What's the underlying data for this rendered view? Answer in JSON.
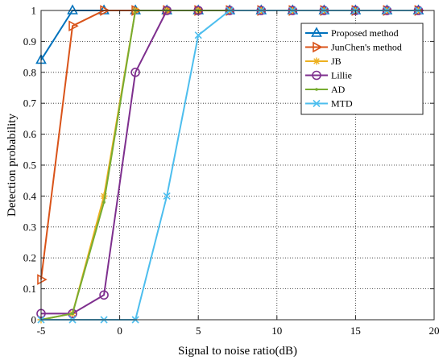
{
  "chart_data": {
    "type": "line",
    "title": "",
    "xlabel": "Signal to noise ratio(dB)",
    "ylabel": "Detection probability",
    "xlim": [
      -5,
      20
    ],
    "ylim": [
      0,
      1
    ],
    "xticks": [
      -5,
      0,
      5,
      10,
      15,
      20
    ],
    "xtick_labels": [
      "-5",
      "0",
      "5",
      "10",
      "15",
      "20"
    ],
    "yticks": [
      0,
      0.1,
      0.2,
      0.3,
      0.4,
      0.5,
      0.6,
      0.7,
      0.8,
      0.9,
      1
    ],
    "ytick_labels": [
      "0",
      "0.1",
      "0.2",
      "0.3",
      "0.4",
      "0.5",
      "0.6",
      "0.7",
      "0.8",
      "0.9",
      "1"
    ],
    "grid": true,
    "grid_style": "dotted",
    "legend_position": "top-right",
    "series": [
      {
        "name": "Proposed method",
        "color": "#0072BD",
        "marker": "triangle-up",
        "x": [
          -5,
          -3,
          -1,
          1,
          3,
          5,
          7,
          9,
          11,
          13,
          15,
          17,
          19
        ],
        "y": [
          0.84,
          1,
          1,
          1,
          1,
          1,
          1,
          1,
          1,
          1,
          1,
          1,
          1
        ]
      },
      {
        "name": "JunChen's method",
        "color": "#D95319",
        "marker": "triangle-right",
        "x": [
          -5,
          -3,
          -1,
          1,
          3,
          5,
          7,
          9,
          11,
          13,
          15,
          17,
          19
        ],
        "y": [
          0.13,
          0.95,
          1,
          1,
          1,
          1,
          1,
          1,
          1,
          1,
          1,
          1,
          1
        ]
      },
      {
        "name": "JB",
        "color": "#EDB120",
        "marker": "asterisk",
        "x": [
          -5,
          -3,
          -1,
          1,
          3,
          5,
          7,
          9,
          11,
          13,
          15,
          17,
          19
        ],
        "y": [
          0,
          0.02,
          0.4,
          1,
          1,
          1,
          1,
          1,
          1,
          1,
          1,
          1,
          1
        ]
      },
      {
        "name": "Lillie",
        "color": "#7E2F8E",
        "marker": "circle",
        "x": [
          -5,
          -3,
          -1,
          1,
          3,
          5,
          7,
          9,
          11,
          13,
          15,
          17,
          19
        ],
        "y": [
          0.02,
          0.02,
          0.08,
          0.8,
          1,
          1,
          1,
          1,
          1,
          1,
          1,
          1,
          1
        ]
      },
      {
        "name": "AD",
        "color": "#77AC30",
        "marker": "point",
        "x": [
          -5,
          -3,
          -1,
          1,
          3,
          5,
          7,
          9,
          11,
          13,
          15,
          17,
          19
        ],
        "y": [
          0,
          0.02,
          0.38,
          1,
          1,
          1,
          1,
          1,
          1,
          1,
          1,
          1,
          1
        ]
      },
      {
        "name": "MTD",
        "color": "#4DBEEE",
        "marker": "x",
        "x": [
          -5,
          -3,
          -1,
          1,
          3,
          5,
          7,
          9,
          11,
          13,
          15,
          17,
          19
        ],
        "y": [
          0,
          0,
          0,
          0,
          0.4,
          0.92,
          1,
          1,
          1,
          1,
          1,
          1,
          1
        ]
      }
    ]
  }
}
